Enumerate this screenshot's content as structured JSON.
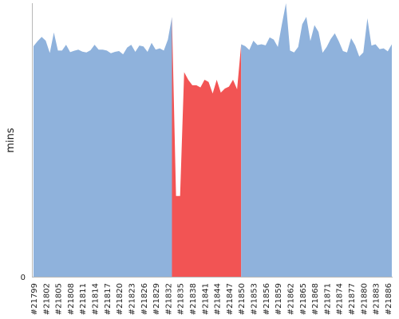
{
  "chart_data": {
    "type": "area",
    "title": "",
    "xlabel": "",
    "ylabel": "mins",
    "y_ticks": [
      "0"
    ],
    "ylim": [
      0,
      100
    ],
    "grid": false,
    "legend": "none",
    "x_tick_labels": [
      "#21799",
      "#21802",
      "#21805",
      "#21808",
      "#21811",
      "#21814",
      "#21817",
      "#21820",
      "#21823",
      "#21826",
      "#21829",
      "#21832",
      "#21835",
      "#21838",
      "#21841",
      "#21844",
      "#21847",
      "#21850",
      "#21853",
      "#21856",
      "#21859",
      "#21862",
      "#21865",
      "#21868",
      "#21871",
      "#21874",
      "#21877",
      "#21880",
      "#21883",
      "#21886"
    ],
    "x_start_build": 21799,
    "x_end_build": 21888,
    "values": [
      84.3,
      86.1,
      87.7,
      86.3,
      81.8,
      89.3,
      82.7,
      82.7,
      84.8,
      82.1,
      82.6,
      83.0,
      82.3,
      82.0,
      82.8,
      84.8,
      83.0,
      83.0,
      82.7,
      81.7,
      82.2,
      82.5,
      81.3,
      83.8,
      84.8,
      82.2,
      84.5,
      84.2,
      82.2,
      85.5,
      83.0,
      83.5,
      82.7,
      86.7,
      95.0,
      29.5,
      29.5,
      74.8,
      72.0,
      70.0,
      70.0,
      69.2,
      72.0,
      71.2,
      67.0,
      72.0,
      67.3,
      68.8,
      69.5,
      72.0,
      68.5,
      85.0,
      84.3,
      82.9,
      86.3,
      84.7,
      85.0,
      84.6,
      87.5,
      86.7,
      84.0,
      92.3,
      100.0,
      82.7,
      82.0,
      84.0,
      92.3,
      95.0,
      86.2,
      92.0,
      89.5,
      81.9,
      84.0,
      86.9,
      89.0,
      86.0,
      82.5,
      82.0,
      87.2,
      84.6,
      80.5,
      82.0,
      94.5,
      84.5,
      85.0,
      83.2,
      83.5,
      82.4,
      85.0
    ],
    "series_colors": {
      "normal": "#8FB2DC",
      "failed": "#F25454"
    },
    "failed_range": [
      21834,
      21850
    ]
  }
}
